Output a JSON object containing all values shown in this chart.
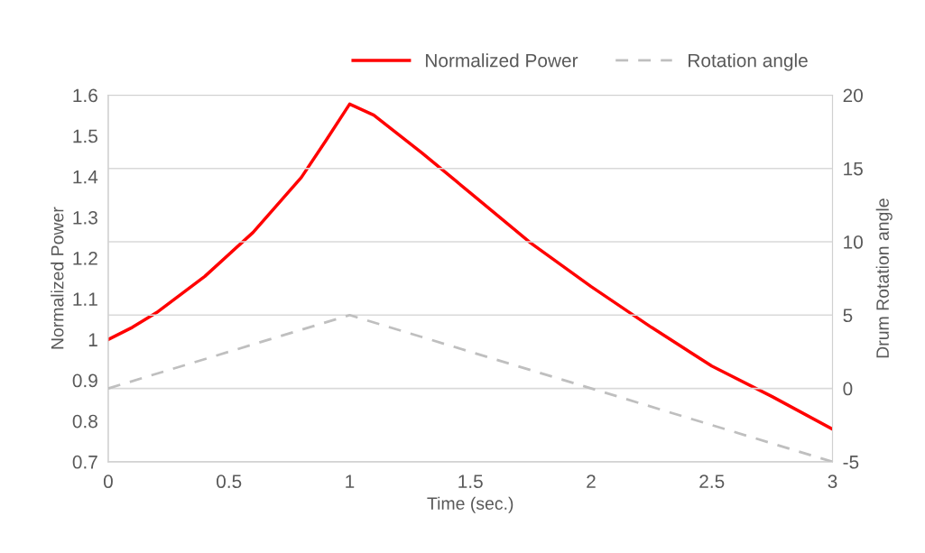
{
  "chart_data": {
    "type": "line",
    "xlabel": "Time (sec.)",
    "ylabel": "Normalized Power",
    "y2label": "Drum Rotation angle",
    "series": [
      {
        "name": "Normalized Power",
        "color": "#ff0000",
        "line_style": "solid",
        "x": [
          0,
          0.1,
          0.2,
          0.4,
          0.6,
          0.8,
          0.9,
          1.0,
          1.1,
          1.3,
          1.5,
          1.75,
          2.0,
          2.25,
          2.5,
          2.75,
          3.0
        ],
        "values": [
          1.0,
          1.03,
          1.066,
          1.155,
          1.263,
          1.398,
          1.487,
          1.578,
          1.551,
          1.458,
          1.36,
          1.237,
          1.13,
          1.03,
          0.935,
          0.86,
          0.78
        ]
      },
      {
        "name": "Rotation angle",
        "color": "#bfbfbf",
        "line_style": "dashed",
        "axis": "y2",
        "x": [
          0,
          1,
          3
        ],
        "values": [
          0,
          5,
          -5
        ]
      }
    ],
    "xlim": [
      0,
      3
    ],
    "xticks": [
      0,
      0.5,
      1,
      1.5,
      2,
      2.5,
      3
    ],
    "ylim": [
      0.7,
      1.6
    ],
    "yticks": [
      0.7,
      0.8,
      0.9,
      1,
      1.1,
      1.2,
      1.3,
      1.4,
      1.5,
      1.6
    ],
    "y2lim": [
      -5,
      20
    ],
    "y2ticks": [
      -5,
      0,
      5,
      10,
      15,
      20
    ],
    "grid": "y2",
    "legend": "top right"
  }
}
